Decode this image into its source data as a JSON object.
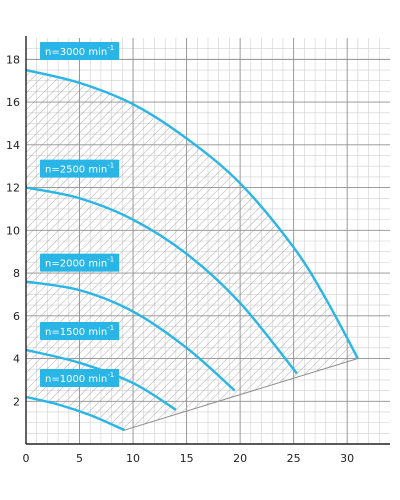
{
  "chart_data": {
    "type": "line",
    "title": "",
    "xlabel": "",
    "ylabel": "",
    "xlim": [
      0,
      34
    ],
    "ylim": [
      0,
      19
    ],
    "x_ticks": [
      0,
      5,
      10,
      15,
      20,
      25,
      30
    ],
    "y_ticks": [
      2,
      4,
      6,
      8,
      10,
      12,
      14,
      16,
      18
    ],
    "grid": true,
    "series_color": "#29b6e6",
    "hatched_region": "operating range below n=3000 curve and above boundary line",
    "series": [
      {
        "name": "n=1000 min-1",
        "label_main": "n=1000 min",
        "label_exp": "-1",
        "x": [
          0,
          3,
          6,
          9.2
        ],
        "y": [
          2.2,
          1.85,
          1.35,
          0.65
        ]
      },
      {
        "name": "n=1500 min-1",
        "label_main": "n=1500 min",
        "label_exp": "-1",
        "x": [
          0,
          5,
          10,
          14
        ],
        "y": [
          4.4,
          3.8,
          2.85,
          1.6
        ]
      },
      {
        "name": "n=2000 min-1",
        "label_main": "n=2000 min",
        "label_exp": "-1",
        "x": [
          0,
          5,
          10,
          15,
          19.5
        ],
        "y": [
          7.6,
          7.2,
          6.2,
          4.5,
          2.5
        ]
      },
      {
        "name": "n=2500 min-1",
        "label_main": "n=2500 min",
        "label_exp": "-1",
        "x": [
          0,
          5,
          10,
          15,
          20,
          25.3
        ],
        "y": [
          12.0,
          11.5,
          10.5,
          8.9,
          6.6,
          3.3
        ]
      },
      {
        "name": "n=3000 min-1",
        "label_main": "n=3000 min",
        "label_exp": "-1",
        "x": [
          0,
          5,
          10,
          15,
          20,
          25,
          28,
          31
        ],
        "y": [
          17.5,
          16.9,
          15.9,
          14.3,
          12.2,
          9.2,
          6.8,
          4.0
        ]
      }
    ],
    "boundary_line": {
      "x": [
        9.2,
        31
      ],
      "y": [
        0.65,
        4.0
      ]
    }
  }
}
